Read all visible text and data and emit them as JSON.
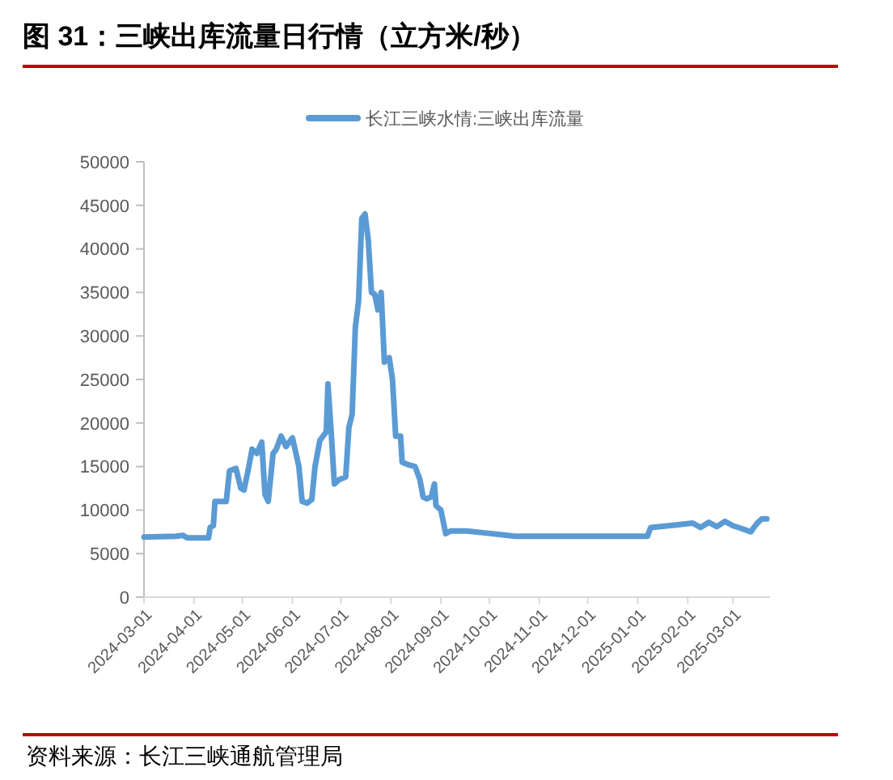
{
  "chart_data": {
    "type": "line",
    "title": "图 31：三峡出库流量日行情（立方米/秒）",
    "annotations": [
      "资料来源：长江三峡通航管理局"
    ],
    "legend": "top",
    "grid": false,
    "line_style": "solid",
    "marker": "none",
    "xlim": [
      "2024-03-01",
      "2025-03-24"
    ],
    "xticks": [
      "2024-03-01",
      "2024-04-01",
      "2024-05-01",
      "2024-06-01",
      "2024-07-01",
      "2024-08-01",
      "2024-09-01",
      "2024-10-01",
      "2024-11-01",
      "2024-12-01",
      "2025-01-01",
      "2025-02-01",
      "2025-03-01"
    ],
    "ylim": [
      0,
      50000
    ],
    "yticks": [
      0,
      5000,
      10000,
      15000,
      20000,
      25000,
      30000,
      35000,
      40000,
      45000,
      50000
    ],
    "x": [
      "2024-03-01",
      "2024-03-21",
      "2024-03-25",
      "2024-03-28",
      "2024-04-10",
      "2024-04-11",
      "2024-04-13",
      "2024-04-14",
      "2024-04-21",
      "2024-04-23",
      "2024-04-27",
      "2024-04-30",
      "2024-05-02",
      "2024-05-05",
      "2024-05-07",
      "2024-05-10",
      "2024-05-13",
      "2024-05-15",
      "2024-05-17",
      "2024-05-20",
      "2024-05-22",
      "2024-05-25",
      "2024-05-28",
      "2024-06-01",
      "2024-06-05",
      "2024-06-07",
      "2024-06-10",
      "2024-06-13",
      "2024-06-15",
      "2024-06-18",
      "2024-06-22",
      "2024-06-23",
      "2024-06-25",
      "2024-06-27",
      "2024-06-30",
      "2024-07-04",
      "2024-07-06",
      "2024-07-08",
      "2024-07-10",
      "2024-07-12",
      "2024-07-14",
      "2024-07-16",
      "2024-07-18",
      "2024-07-20",
      "2024-07-22",
      "2024-07-24",
      "2024-07-26",
      "2024-07-28",
      "2024-07-31",
      "2024-08-02",
      "2024-08-04",
      "2024-08-07",
      "2024-08-08",
      "2024-08-12",
      "2024-08-16",
      "2024-08-19",
      "2024-08-21",
      "2024-08-23",
      "2024-08-26",
      "2024-08-28",
      "2024-08-29",
      "2024-09-01",
      "2024-09-04",
      "2024-09-07",
      "2024-09-17",
      "2024-09-27",
      "2024-10-07",
      "2024-10-17",
      "2024-11-16",
      "2024-12-16",
      "2025-01-07",
      "2025-01-09",
      "2025-01-25",
      "2025-02-04",
      "2025-02-09",
      "2025-02-14",
      "2025-02-19",
      "2025-02-24",
      "2025-03-01",
      "2025-03-06",
      "2025-03-12",
      "2025-03-16",
      "2025-03-19",
      "2025-03-22"
    ],
    "series": [
      {
        "name": "长江三峡水情:三峡出库流量",
        "color": "#5b9bd5",
        "values": [
          6900,
          7000,
          7100,
          6800,
          6800,
          8000,
          8200,
          11000,
          11000,
          14500,
          14800,
          12500,
          12300,
          15000,
          17000,
          16500,
          17800,
          11800,
          11000,
          16500,
          17000,
          18500,
          17300,
          18300,
          15000,
          11000,
          10800,
          11200,
          15000,
          18000,
          19000,
          24500,
          19000,
          13000,
          13500,
          13800,
          19500,
          21000,
          31000,
          34000,
          43500,
          44000,
          41000,
          35000,
          34800,
          33000,
          35000,
          27000,
          27500,
          25000,
          18500,
          18500,
          15500,
          15200,
          15000,
          13500,
          11500,
          11300,
          11500,
          13000,
          10500,
          10000,
          7300,
          7600,
          7600,
          7400,
          7200,
          7000,
          7000,
          7000,
          7000,
          8000,
          8300,
          8500,
          8000,
          8600,
          8100,
          8700,
          8200,
          7900,
          7500,
          8500,
          9000,
          9000
        ]
      }
    ]
  }
}
